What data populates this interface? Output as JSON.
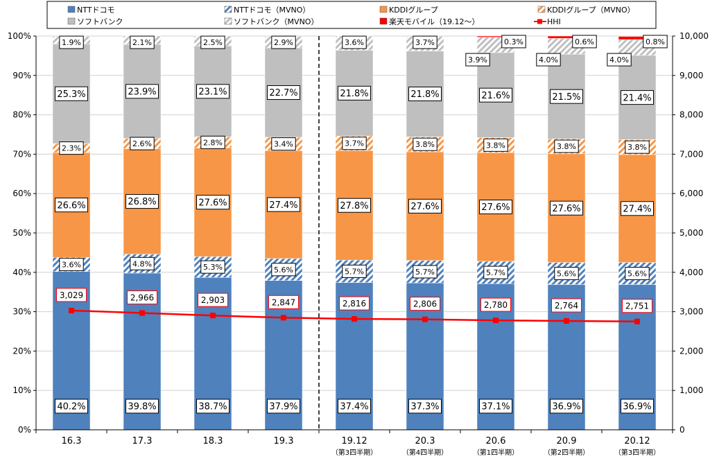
{
  "chart_data": {
    "type": "bar",
    "stacked": true,
    "categories": [
      "16.3",
      "17.3",
      "18.3",
      "19.3",
      "19.12",
      "20.3",
      "20.6",
      "20.9",
      "20.12"
    ],
    "category_sublabels": [
      "",
      "",
      "",
      "",
      "（第3四半期）",
      "（第4四半期）",
      "（第1四半期）",
      "（第2四半期）",
      "（第3四半期）"
    ],
    "divider_after_category": "19.3",
    "ylim_left": [
      0,
      100
    ],
    "yticks_left": [
      "0%",
      "10%",
      "20%",
      "30%",
      "40%",
      "50%",
      "60%",
      "70%",
      "80%",
      "90%",
      "100%"
    ],
    "ylim_right": [
      0,
      10000
    ],
    "yticks_right": [
      "0",
      "1,000",
      "2,000",
      "3,000",
      "4,000",
      "5,000",
      "6,000",
      "7,000",
      "8,000",
      "9,000",
      "10,000"
    ],
    "series": [
      {
        "name": "NTTドコモ",
        "color": "#4f81bd",
        "pattern": "solid",
        "values": [
          40.2,
          39.8,
          38.7,
          37.9,
          37.4,
          37.3,
          37.1,
          36.9,
          36.9
        ],
        "labels": [
          "40.2%",
          "39.8%",
          "38.7%",
          "37.9%",
          "37.4%",
          "37.3%",
          "37.1%",
          "36.9%",
          "36.9%"
        ]
      },
      {
        "name": "NTTドコモ（MVNO）",
        "color": "#4f81bd",
        "pattern": "hatch",
        "values": [
          3.6,
          4.8,
          5.3,
          5.6,
          5.7,
          5.7,
          5.7,
          5.6,
          5.6
        ],
        "labels": [
          "3.6%",
          "4.8%",
          "5.3%",
          "5.6%",
          "5.7%",
          "5.7%",
          "5.7%",
          "5.6%",
          "5.6%"
        ]
      },
      {
        "name": "KDDIグループ",
        "color": "#f79646",
        "pattern": "solid",
        "values": [
          26.6,
          26.8,
          27.6,
          27.4,
          27.8,
          27.6,
          27.6,
          27.6,
          27.4
        ],
        "labels": [
          "26.6%",
          "26.8%",
          "27.6%",
          "27.4%",
          "27.8%",
          "27.6%",
          "27.6%",
          "27.6%",
          "27.4%"
        ]
      },
      {
        "name": "KDDIグループ（MVNO）",
        "color": "#f79646",
        "pattern": "hatch",
        "values": [
          2.3,
          2.6,
          2.8,
          3.4,
          3.7,
          3.8,
          3.8,
          3.8,
          3.8
        ],
        "labels": [
          "2.3%",
          "2.6%",
          "2.8%",
          "3.4%",
          "3.7%",
          "3.8%",
          "3.8%",
          "3.8%",
          "3.8%"
        ]
      },
      {
        "name": "ソフトバンク",
        "color": "#bfbfbf",
        "pattern": "solid",
        "values": [
          25.3,
          23.9,
          23.1,
          22.7,
          21.8,
          21.8,
          21.6,
          21.5,
          21.4
        ],
        "labels": [
          "25.3%",
          "23.9%",
          "23.1%",
          "22.7%",
          "21.8%",
          "21.8%",
          "21.6%",
          "21.5%",
          "21.4%"
        ]
      },
      {
        "name": "ソフトバンク（MVNO）",
        "color": "#bfbfbf",
        "pattern": "hatch",
        "values": [
          1.9,
          2.1,
          2.5,
          2.9,
          3.6,
          3.7,
          3.9,
          4.0,
          4.0
        ],
        "labels": [
          "1.9%",
          "2.1%",
          "2.5%",
          "2.9%",
          "3.6%",
          "3.7%",
          "3.9%",
          "4.0%",
          "4.0%"
        ]
      },
      {
        "name": "楽天モバイル（19.12～）",
        "color": "#ff0000",
        "pattern": "solid",
        "values": [
          0,
          0,
          0,
          0,
          0,
          0,
          0.3,
          0.6,
          0.8
        ],
        "labels": [
          "",
          "",
          "",
          "",
          "",
          "",
          "0.3%",
          "0.6%",
          "0.8%"
        ]
      }
    ],
    "line_series": {
      "name": "HHI",
      "color": "#ff0000",
      "axis": "right",
      "values": [
        3029,
        2966,
        2903,
        2847,
        2816,
        2806,
        2780,
        2764,
        2751
      ],
      "labels": [
        "3,029",
        "2,966",
        "2,903",
        "2,847",
        "2,816",
        "2,806",
        "2,780",
        "2,764",
        "2,751"
      ]
    },
    "legend": {
      "placement": "top",
      "entries": [
        "NTTドコモ",
        "NTTドコモ（MVNO）",
        "KDDIグループ",
        "KDDIグループ（MVNO）",
        "ソフトバンク",
        "ソフトバンク（MVNO）",
        "楽天モバイル（19.12～）",
        "HHI"
      ]
    },
    "grid": true
  }
}
